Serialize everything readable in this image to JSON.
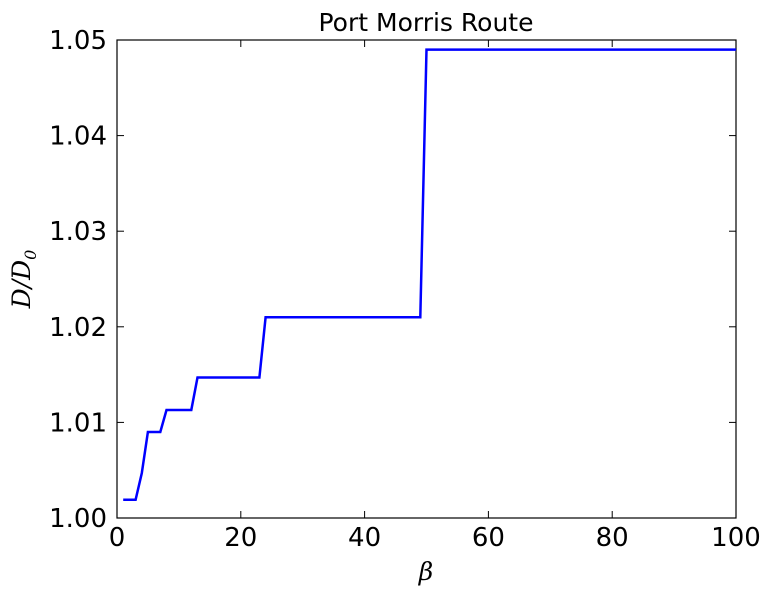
{
  "chart_data": {
    "type": "line",
    "title": "Port Morris Route",
    "xlabel": "β",
    "ylabel_main": "D/D",
    "ylabel_sub": "0",
    "xlim": [
      0,
      100
    ],
    "ylim": [
      1.0,
      1.05
    ],
    "xticks": [
      0,
      20,
      40,
      60,
      80,
      100
    ],
    "yticks": [
      1.0,
      1.01,
      1.02,
      1.03,
      1.04,
      1.05
    ],
    "xtick_labels": [
      "0",
      "20",
      "40",
      "60",
      "80",
      "100"
    ],
    "ytick_labels": [
      "1.00",
      "1.01",
      "1.02",
      "1.03",
      "1.04",
      "1.05"
    ],
    "grid": false,
    "series": [
      {
        "color": "#0000ff",
        "x": [
          1,
          3,
          4,
          5,
          7,
          8,
          12,
          13,
          23,
          24,
          49,
          50,
          100
        ],
        "y": [
          1.0019,
          1.0019,
          1.0047,
          1.009,
          1.009,
          1.0113,
          1.0113,
          1.0147,
          1.0147,
          1.021,
          1.021,
          1.049,
          1.049
        ]
      }
    ]
  }
}
